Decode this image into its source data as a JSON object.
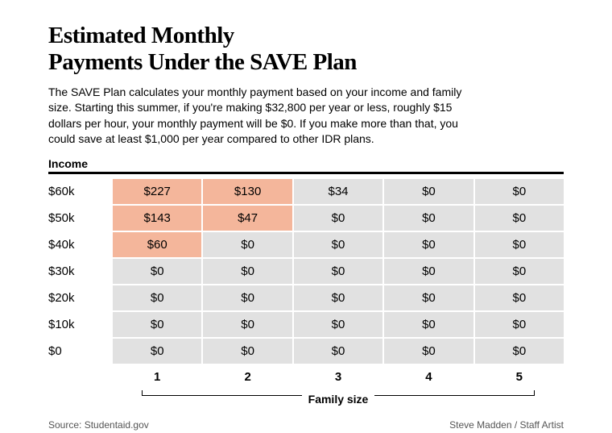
{
  "title_line1": "Estimated Monthly",
  "title_line2": "Payments Under the SAVE Plan",
  "description": "The SAVE Plan calculates your monthly payment based on your income and family size. Starting this summer, if you're making $32,800 per year or less, roughly $15 dollars per hour, your monthly payment will be $0. If you make more than that, you could save at least $1,000 per year compared to other IDR plans.",
  "income_label": "Income",
  "family_size_label": "Family size",
  "source": "Source: Studentaid.gov",
  "artist": "Steve Madden / Staff Artist",
  "colors": {
    "highlight": "#f4b69b",
    "gray": "#e1e1e1",
    "rule": "#000000",
    "text": "#000000",
    "credit": "#555555",
    "background": "#ffffff"
  },
  "table": {
    "income_levels": [
      "$60k",
      "$50k",
      "$40k",
      "$30k",
      "$20k",
      "$10k",
      "$0"
    ],
    "family_sizes": [
      "1",
      "2",
      "3",
      "4",
      "5"
    ],
    "rows": [
      [
        {
          "v": "$227",
          "h": true
        },
        {
          "v": "$130",
          "h": true
        },
        {
          "v": "$34",
          "h": false
        },
        {
          "v": "$0",
          "h": false
        },
        {
          "v": "$0",
          "h": false
        }
      ],
      [
        {
          "v": "$143",
          "h": true
        },
        {
          "v": "$47",
          "h": true
        },
        {
          "v": "$0",
          "h": false
        },
        {
          "v": "$0",
          "h": false
        },
        {
          "v": "$0",
          "h": false
        }
      ],
      [
        {
          "v": "$60",
          "h": true
        },
        {
          "v": "$0",
          "h": false
        },
        {
          "v": "$0",
          "h": false
        },
        {
          "v": "$0",
          "h": false
        },
        {
          "v": "$0",
          "h": false
        }
      ],
      [
        {
          "v": "$0",
          "h": false
        },
        {
          "v": "$0",
          "h": false
        },
        {
          "v": "$0",
          "h": false
        },
        {
          "v": "$0",
          "h": false
        },
        {
          "v": "$0",
          "h": false
        }
      ],
      [
        {
          "v": "$0",
          "h": false
        },
        {
          "v": "$0",
          "h": false
        },
        {
          "v": "$0",
          "h": false
        },
        {
          "v": "$0",
          "h": false
        },
        {
          "v": "$0",
          "h": false
        }
      ],
      [
        {
          "v": "$0",
          "h": false
        },
        {
          "v": "$0",
          "h": false
        },
        {
          "v": "$0",
          "h": false
        },
        {
          "v": "$0",
          "h": false
        },
        {
          "v": "$0",
          "h": false
        }
      ],
      [
        {
          "v": "$0",
          "h": false
        },
        {
          "v": "$0",
          "h": false
        },
        {
          "v": "$0",
          "h": false
        },
        {
          "v": "$0",
          "h": false
        },
        {
          "v": "$0",
          "h": false
        }
      ]
    ]
  }
}
